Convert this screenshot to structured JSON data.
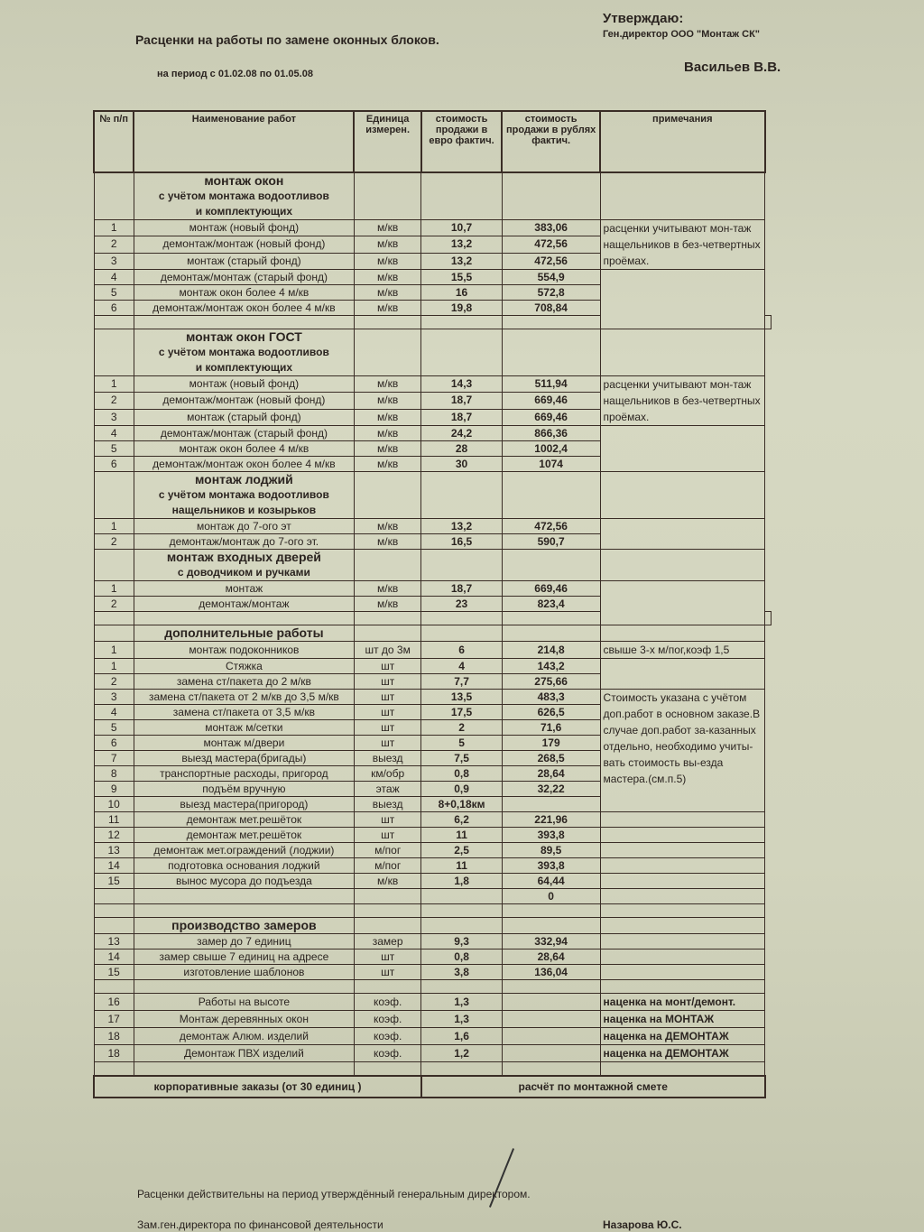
{
  "header": {
    "title": "Расценки на работы по замене оконных блоков.",
    "period": "на период с 01.02.08 по 01.05.08",
    "approve": "Утверждаю:",
    "director_title": "Ген.директор ООО \"Монтаж СК\"",
    "director_name": "Васильев В.В."
  },
  "columns": [
    "№ п/п",
    "Наименование работ",
    "Единица измерен.",
    "стоимость продажи в евро фактич.",
    "стоимость продажи в рублях фактич.",
    "примечания"
  ],
  "sections": [
    {
      "title": [
        "монтаж окон",
        "с учётом монтажа водоотливов",
        "и комплектующих"
      ],
      "items": [
        {
          "n": "1",
          "name": "монтаж (новый фонд)",
          "unit": "м/кв",
          "eur": "10,7",
          "rub": "383,06",
          "note": "расценки учитывают мон-таж нащельников в без-четвертных проёмах.",
          "span": 3
        },
        {
          "n": "2",
          "name": "демонтаж/монтаж (новый фонд)",
          "unit": "м/кв",
          "eur": "13,2",
          "rub": "472,56"
        },
        {
          "n": "3",
          "name": "монтаж (старый фонд)",
          "unit": "м/кв",
          "eur": "13,2",
          "rub": "472,56"
        },
        {
          "n": "4",
          "name": "демонтаж/монтаж (старый фонд)",
          "unit": "м/кв",
          "eur": "15,5",
          "rub": "554,9",
          "note": "",
          "span": 4
        },
        {
          "n": "5",
          "name": "монтаж окон более 4 м/кв",
          "unit": "м/кв",
          "eur": "16",
          "rub": "572,8"
        },
        {
          "n": "6",
          "name": "демонтаж/монтаж окон более 4 м/кв",
          "unit": "м/кв",
          "eur": "19,8",
          "rub": "708,84"
        },
        {
          "blank": true
        }
      ]
    },
    {
      "title": [
        "монтаж окон ГОСТ",
        "с учётом монтажа водоотливов",
        "и комплектующих"
      ],
      "items": [
        {
          "n": "1",
          "name": "монтаж (новый фонд)",
          "unit": "м/кв",
          "eur": "14,3",
          "rub": "511,94",
          "note": "расценки учитывают мон-таж нащельников в без-четвертных проёмах.",
          "span": 3
        },
        {
          "n": "2",
          "name": "демонтаж/монтаж (новый фонд)",
          "unit": "м/кв",
          "eur": "18,7",
          "rub": "669,46"
        },
        {
          "n": "3",
          "name": "монтаж (старый фонд)",
          "unit": "м/кв",
          "eur": "18,7",
          "rub": "669,46"
        },
        {
          "n": "4",
          "name": "демонтаж/монтаж (старый фонд)",
          "unit": "м/кв",
          "eur": "24,2",
          "rub": "866,36",
          "note": "",
          "span": 3
        },
        {
          "n": "5",
          "name": "монтаж окон более 4 м/кв",
          "unit": "м/кв",
          "eur": "28",
          "rub": "1002,4"
        },
        {
          "n": "6",
          "name": "демонтаж/монтаж окон более 4 м/кв",
          "unit": "м/кв",
          "eur": "30",
          "rub": "1074"
        }
      ]
    },
    {
      "title": [
        "монтаж лоджий",
        "с учётом монтажа водоотливов",
        "нащельников и козырьков"
      ],
      "items": [
        {
          "n": "1",
          "name": "монтаж до 7-ого эт",
          "unit": "м/кв",
          "eur": "13,2",
          "rub": "472,56",
          "note": "",
          "span": 2
        },
        {
          "n": "2",
          "name": "демонтаж/монтаж до 7-ого эт.",
          "unit": "м/кв",
          "eur": "16,5",
          "rub": "590,7"
        }
      ]
    },
    {
      "title": [
        "монтаж входных дверей",
        "с доводчиком и ручками"
      ],
      "items": [
        {
          "n": "1",
          "name": "монтаж",
          "unit": "м/кв",
          "eur": "18,7",
          "rub": "669,46",
          "note": "",
          "span": 3
        },
        {
          "n": "2",
          "name": "демонтаж/монтаж",
          "unit": "м/кв",
          "eur": "23",
          "rub": "823,4"
        },
        {
          "blank": true
        }
      ]
    },
    {
      "title": [
        "дополнительные работы"
      ],
      "items": [
        {
          "n": "1",
          "name": "монтаж подоконников",
          "unit": "шт до 3м",
          "eur": "6",
          "rub": "214,8",
          "note": "свыше 3-х м/пог,коэф 1,5",
          "span": 1
        },
        {
          "n": "1",
          "name": "Стяжка",
          "unit": "шт",
          "eur": "4",
          "rub": "143,2",
          "note": "",
          "span": 2
        },
        {
          "n": "2",
          "name": "замена ст/пакета до 2 м/кв",
          "unit": "шт",
          "eur": "7,7",
          "rub": "275,66"
        },
        {
          "n": "3",
          "name": "замена ст/пакета от 2 м/кв до 3,5 м/кв",
          "unit": "шт",
          "eur": "13,5",
          "rub": "483,3",
          "note": "Стоимость указана с учётом доп.работ в основном заказе.В случае доп.работ за-казанных отдельно, необходимо учиты-вать стоимость вы-езда мастера.(см.п.5)",
          "span": 8
        },
        {
          "n": "4",
          "name": "замена ст/пакета от 3,5 м/кв",
          "unit": "шт",
          "eur": "17,5",
          "rub": "626,5"
        },
        {
          "n": "5",
          "name": "монтаж м/сетки",
          "unit": "шт",
          "eur": "2",
          "rub": "71,6"
        },
        {
          "n": "6",
          "name": "монтаж м/двери",
          "unit": "шт",
          "eur": "5",
          "rub": "179"
        },
        {
          "n": "7",
          "name": "выезд мастера(бригады)",
          "unit": "выезд",
          "eur": "7,5",
          "rub": "268,5"
        },
        {
          "n": "8",
          "name": "транспортные расходы, пригород",
          "unit": "км/обр",
          "eur": "0,8",
          "rub": "28,64"
        },
        {
          "n": "9",
          "name": "подъём вручную",
          "unit": "этаж",
          "eur": "0,9",
          "rub": "32,22"
        },
        {
          "n": "10",
          "name": "выезд мастера(пригород)",
          "unit": "выезд",
          "eur": "8+0,18км",
          "rub": ""
        },
        {
          "n": "11",
          "name": "демонтаж мет.решёток",
          "unit": "шт",
          "eur": "6,2",
          "rub": "221,96"
        },
        {
          "n": "12",
          "name": "демонтаж мет.решёток",
          "unit": "шт",
          "eur": "11",
          "rub": "393,8"
        },
        {
          "n": "13",
          "name": "демонтаж мет.ограждений (лоджии)",
          "unit": "м/пог",
          "eur": "2,5",
          "rub": "89,5"
        },
        {
          "n": "14",
          "name": "подготовка основания лоджий",
          "unit": "м/пог",
          "eur": "11",
          "rub": "393,8"
        },
        {
          "n": "15",
          "name": "вынос мусора до подъезда",
          "unit": "м/кв",
          "eur": "1,8",
          "rub": "64,44"
        },
        {
          "n": "",
          "name": "",
          "unit": "",
          "eur": "",
          "rub": "0"
        },
        {
          "blank": true
        }
      ]
    },
    {
      "title": [
        "производство замеров"
      ],
      "items": [
        {
          "n": "13",
          "name": "замер до 7 единиц",
          "unit": "замер",
          "eur": "9,3",
          "rub": "332,94"
        },
        {
          "n": "14",
          "name": "замер свыше 7 единиц на адресе",
          "unit": "шт",
          "eur": "0,8",
          "rub": "28,64"
        },
        {
          "n": "15",
          "name": "изготовление шаблонов",
          "unit": "шт",
          "eur": "3,8",
          "rub": "136,04"
        },
        {
          "blank": true
        },
        {
          "n": "16",
          "name": "Работы на высоте",
          "unit": "коэф.",
          "eur": "1,3",
          "rub": "",
          "note": "наценка на монт/демонт.",
          "span": 1,
          "bold": true
        },
        {
          "n": "17",
          "name": "Монтаж деревянных окон",
          "unit": "коэф.",
          "eur": "1,3",
          "rub": "",
          "note": "наценка на МОНТАЖ",
          "span": 1,
          "bold": true
        },
        {
          "n": "18",
          "name": "демонтаж Алюм. изделий",
          "unit": "коэф.",
          "eur": "1,6",
          "rub": "",
          "note": "наценка на ДЕМОНТАЖ",
          "span": 1,
          "bold": true
        },
        {
          "n": "18",
          "name": "Демонтаж ПВХ изделий",
          "unit": "коэф.",
          "eur": "1,2",
          "rub": "",
          "note": "наценка на ДЕМОНТАЖ",
          "span": 1,
          "bold": true
        },
        {
          "blank": true
        }
      ]
    }
  ],
  "corporate": {
    "label": "корпоративные заказы (от 30 единиц )",
    "value": "расчёт по монтажной смете"
  },
  "footer": {
    "validity": "Расценки действительны на период утверждённый генеральным директором.",
    "deputy": "Зам.ген.директора по финансовой деятельности",
    "deputy_name": "Назарова Ю.С."
  }
}
